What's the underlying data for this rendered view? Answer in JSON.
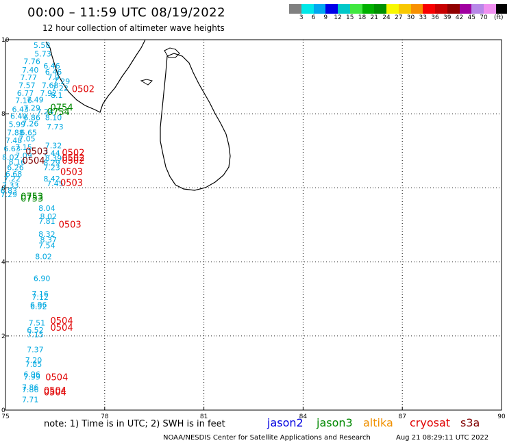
{
  "header": {
    "title": "00:00 – 11:59 UTC 08/19/2022",
    "subtitle": "12 hour collection of altimeter wave heights"
  },
  "legend": {
    "colors": [
      "#808080",
      "#00e8e8",
      "#00a8f0",
      "#0000e8",
      "#00c8c8",
      "#40e840",
      "#00b000",
      "#009000",
      "#f8f800",
      "#f8c800",
      "#f89000",
      "#f80000",
      "#c80000",
      "#900000",
      "#a000a0",
      "#b888e8",
      "#f090f0",
      "#000000"
    ],
    "labels": [
      "3",
      "6",
      "9",
      "12",
      "15",
      "18",
      "21",
      "24",
      "27",
      "30",
      "33",
      "36",
      "39",
      "42",
      "45",
      "70",
      "(ft)"
    ]
  },
  "map": {
    "xlim": [
      75,
      90
    ],
    "ylim": [
      0,
      10
    ],
    "x_ticks": [
      "75",
      "78",
      "81",
      "84",
      "87",
      "90"
    ],
    "y_ticks": [
      "0",
      "2",
      "4",
      "6",
      "8",
      "10"
    ],
    "grid": "dotted",
    "land": "Sri Lanka and southern tip of India",
    "wave_color": "#00a8e0",
    "wave_heights": [
      {
        "lon": 76.1,
        "lat": 9.85,
        "v": "5.58"
      },
      {
        "lon": 76.13,
        "lat": 9.62,
        "v": "5.73"
      },
      {
        "lon": 75.8,
        "lat": 9.42,
        "v": "7.76"
      },
      {
        "lon": 76.4,
        "lat": 9.3,
        "v": "6.46"
      },
      {
        "lon": 75.75,
        "lat": 9.19,
        "v": "7.40"
      },
      {
        "lon": 76.45,
        "lat": 9.13,
        "v": "6.46"
      },
      {
        "lon": 75.7,
        "lat": 8.98,
        "v": "7.77"
      },
      {
        "lon": 76.45,
        "lat": 8.98,
        "v": "7.9"
      },
      {
        "lon": 76.7,
        "lat": 8.88,
        "v": "7.29"
      },
      {
        "lon": 75.65,
        "lat": 8.77,
        "v": "7.57"
      },
      {
        "lon": 76.35,
        "lat": 8.77,
        "v": "7.68"
      },
      {
        "lon": 76.65,
        "lat": 8.7,
        "v": "7.22"
      },
      {
        "lon": 75.6,
        "lat": 8.56,
        "v": "6.77"
      },
      {
        "lon": 76.3,
        "lat": 8.56,
        "v": "7.92"
      },
      {
        "lon": 76.55,
        "lat": 8.5,
        "v": "8.1"
      },
      {
        "lon": 75.55,
        "lat": 8.36,
        "v": "7.16"
      },
      {
        "lon": 75.9,
        "lat": 8.38,
        "v": "7.49"
      },
      {
        "lon": 75.45,
        "lat": 8.12,
        "v": "6.43"
      },
      {
        "lon": 75.8,
        "lat": 8.16,
        "v": "7.29"
      },
      {
        "lon": 76.2,
        "lat": 8.06,
        "v": "7.24"
      },
      {
        "lon": 75.4,
        "lat": 7.94,
        "v": "6.40"
      },
      {
        "lon": 75.8,
        "lat": 7.9,
        "v": "6.86"
      },
      {
        "lon": 76.45,
        "lat": 7.9,
        "v": "8.10"
      },
      {
        "lon": 75.35,
        "lat": 7.72,
        "v": "5.99"
      },
      {
        "lon": 75.75,
        "lat": 7.74,
        "v": "7.26"
      },
      {
        "lon": 76.5,
        "lat": 7.65,
        "v": "7.73"
      },
      {
        "lon": 75.3,
        "lat": 7.5,
        "v": "7.88"
      },
      {
        "lon": 75.7,
        "lat": 7.5,
        "v": "6.65"
      },
      {
        "lon": 75.25,
        "lat": 7.28,
        "v": "7.48"
      },
      {
        "lon": 75.65,
        "lat": 7.33,
        "v": "7.05"
      },
      {
        "lon": 76.45,
        "lat": 7.14,
        "v": "7.32"
      },
      {
        "lon": 75.2,
        "lat": 7.06,
        "v": "6.63"
      },
      {
        "lon": 75.55,
        "lat": 7.1,
        "v": "7.15"
      },
      {
        "lon": 76.4,
        "lat": 6.94,
        "v": "7.44"
      },
      {
        "lon": 75.15,
        "lat": 6.83,
        "v": "8.02"
      },
      {
        "lon": 75.55,
        "lat": 6.88,
        "v": "7.09"
      },
      {
        "lon": 76.45,
        "lat": 6.8,
        "v": "8.39"
      },
      {
        "lon": 75.35,
        "lat": 6.7,
        "v": "8.16"
      },
      {
        "lon": 76.4,
        "lat": 6.68,
        "v": "8.29"
      },
      {
        "lon": 75.3,
        "lat": 6.55,
        "v": "6.26"
      },
      {
        "lon": 76.4,
        "lat": 6.55,
        "v": "7.23"
      },
      {
        "lon": 75.25,
        "lat": 6.38,
        "v": "6.68"
      },
      {
        "lon": 75.2,
        "lat": 6.25,
        "v": "7.22"
      },
      {
        "lon": 76.4,
        "lat": 6.25,
        "v": "8.42"
      },
      {
        "lon": 75.15,
        "lat": 6.07,
        "v": "7.33"
      },
      {
        "lon": 76.5,
        "lat": 6.12,
        "v": "7.45"
      },
      {
        "lon": 75.1,
        "lat": 5.92,
        "v": "6.83"
      },
      {
        "lon": 75.1,
        "lat": 5.82,
        "v": "7.29"
      },
      {
        "lon": 76.25,
        "lat": 5.45,
        "v": "8.04"
      },
      {
        "lon": 76.3,
        "lat": 5.23,
        "v": "8.02"
      },
      {
        "lon": 76.25,
        "lat": 5.1,
        "v": "7.81"
      },
      {
        "lon": 76.25,
        "lat": 4.75,
        "v": "8.32"
      },
      {
        "lon": 76.3,
        "lat": 4.6,
        "v": "8.37"
      },
      {
        "lon": 76.25,
        "lat": 4.45,
        "v": "7.54"
      },
      {
        "lon": 76.15,
        "lat": 4.15,
        "v": "8.02"
      },
      {
        "lon": 76.1,
        "lat": 3.56,
        "v": "6.90"
      },
      {
        "lon": 76.05,
        "lat": 3.14,
        "v": "7.16"
      },
      {
        "lon": 76.05,
        "lat": 3.05,
        "v": "7.12"
      },
      {
        "lon": 76.0,
        "lat": 2.85,
        "v": "6.96"
      },
      {
        "lon": 76.0,
        "lat": 2.8,
        "v": "6.92"
      },
      {
        "lon": 75.95,
        "lat": 2.36,
        "v": "7.51"
      },
      {
        "lon": 75.9,
        "lat": 2.16,
        "v": "6.52"
      },
      {
        "lon": 75.9,
        "lat": 2.04,
        "v": "7.15"
      },
      {
        "lon": 75.9,
        "lat": 1.64,
        "v": "7.37"
      },
      {
        "lon": 75.85,
        "lat": 1.35,
        "v": "7.20"
      },
      {
        "lon": 75.85,
        "lat": 1.24,
        "v": "7.85"
      },
      {
        "lon": 75.8,
        "lat": 0.97,
        "v": "6.96"
      },
      {
        "lon": 75.8,
        "lat": 0.9,
        "v": "7.99"
      },
      {
        "lon": 75.75,
        "lat": 0.62,
        "v": "7.86"
      },
      {
        "lon": 75.75,
        "lat": 0.55,
        "v": "7.86"
      },
      {
        "lon": 75.75,
        "lat": 0.29,
        "v": "7.71"
      }
    ],
    "passes": [
      {
        "lon": 77.35,
        "lat": 8.66,
        "label": "0502",
        "mission": "cryosat"
      },
      {
        "lon": 76.7,
        "lat": 8.16,
        "label": "0754",
        "mission": "jason3"
      },
      {
        "lon": 76.6,
        "lat": 8.04,
        "label": "0754",
        "mission": "jason3"
      },
      {
        "lon": 75.95,
        "lat": 6.98,
        "label": "0503",
        "mission": "s3a"
      },
      {
        "lon": 77.05,
        "lat": 6.94,
        "label": "0502",
        "mission": "cryosat"
      },
      {
        "lon": 77.05,
        "lat": 6.8,
        "label": "0502",
        "mission": "cryosat"
      },
      {
        "lon": 77.05,
        "lat": 6.73,
        "label": "0502",
        "mission": "cryosat"
      },
      {
        "lon": 75.85,
        "lat": 6.73,
        "label": "0504",
        "mission": "s3a"
      },
      {
        "lon": 77.0,
        "lat": 6.42,
        "label": "0503",
        "mission": "cryosat"
      },
      {
        "lon": 77.0,
        "lat": 6.13,
        "label": "0503",
        "mission": "cryosat"
      },
      {
        "lon": 75.8,
        "lat": 5.76,
        "label": "0753",
        "mission": "jason3"
      },
      {
        "lon": 75.8,
        "lat": 5.7,
        "label": "0753",
        "mission": "jason3"
      },
      {
        "lon": 76.95,
        "lat": 5.0,
        "label": "0503",
        "mission": "cryosat"
      },
      {
        "lon": 76.7,
        "lat": 2.4,
        "label": "0504",
        "mission": "cryosat"
      },
      {
        "lon": 76.7,
        "lat": 2.22,
        "label": "0504",
        "mission": "cryosat"
      },
      {
        "lon": 76.55,
        "lat": 0.88,
        "label": "0504",
        "mission": "cryosat"
      },
      {
        "lon": 76.5,
        "lat": 0.52,
        "label": "0504",
        "mission": "cryosat"
      },
      {
        "lon": 76.5,
        "lat": 0.47,
        "label": "0504",
        "mission": "cryosat"
      }
    ]
  },
  "missions": [
    {
      "key": "jason2",
      "label": "jason2",
      "color": "#0000e0"
    },
    {
      "key": "jason3",
      "label": "jason3",
      "color": "#008800"
    },
    {
      "key": "altika",
      "label": "altika",
      "color": "#f09000"
    },
    {
      "key": "cryosat",
      "label": "cryosat",
      "color": "#e00000"
    },
    {
      "key": "s3a",
      "label": "s3a",
      "color": "#800000"
    }
  ],
  "footer": {
    "note": "note: 1) Time is in UTC; 2) SWH is in feet",
    "credit": "NOAA/NESDIS Center for Satellite Applications and Research",
    "generated": "Aug 21 08:29:11 UTC 2022"
  }
}
